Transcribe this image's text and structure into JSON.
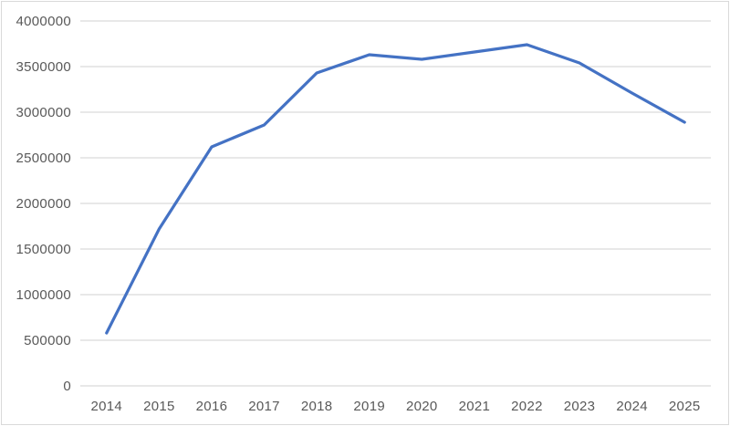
{
  "chart_data": {
    "type": "line",
    "title": "",
    "xlabel": "",
    "ylabel": "",
    "categories": [
      "2014",
      "2015",
      "2016",
      "2017",
      "2018",
      "2019",
      "2020",
      "2021",
      "2022",
      "2023",
      "2024",
      "2025"
    ],
    "values": [
      580000,
      1720000,
      2620000,
      2860000,
      3430000,
      3630000,
      3580000,
      3660000,
      3740000,
      3540000,
      3210000,
      2890000
    ],
    "series_name": "",
    "ylim": [
      0,
      4000000
    ],
    "ytick_interval": 500000,
    "ytick_labels": [
      "0",
      "500000",
      "1000000",
      "1500000",
      "2000000",
      "2500000",
      "3000000",
      "3500000",
      "4000000"
    ],
    "grid": true,
    "legend": "none",
    "colors": {
      "line": "#4472c4",
      "gridline": "#d9d9d9",
      "axis_line": "#d9d9d9",
      "tick_label": "#595959",
      "background": "#ffffff",
      "frame_border": "#d9d9d9"
    }
  }
}
